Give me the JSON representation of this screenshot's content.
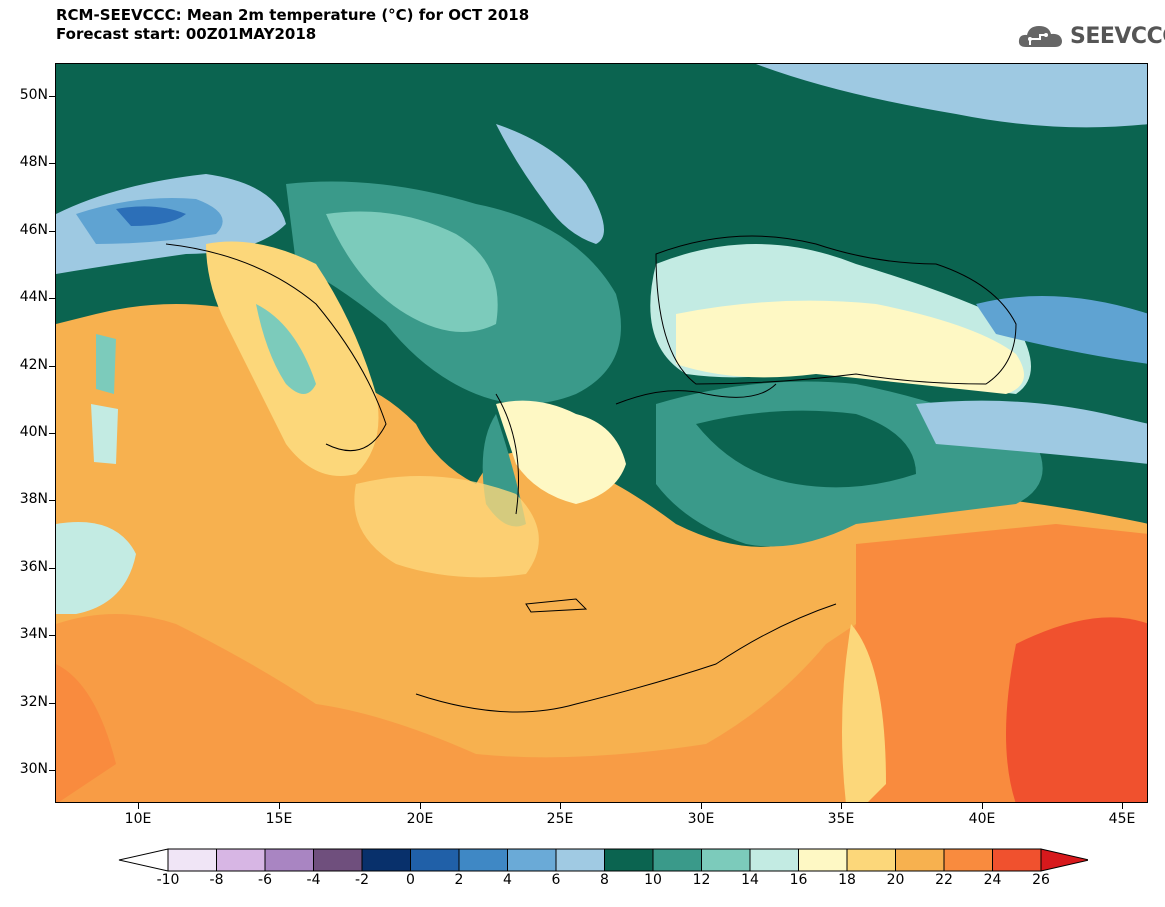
{
  "header": {
    "title_line1": "RCM-SEEVCCC: Mean 2m temperature (°C) for OCT 2018",
    "title_line2": "Forecast start: 00Z01MAY2018",
    "logo_text": "SEEVCCC"
  },
  "map": {
    "lat_labels": [
      "50N",
      "48N",
      "46N",
      "44N",
      "42N",
      "40N",
      "38N",
      "36N",
      "34N",
      "32N",
      "30N"
    ],
    "lon_labels": [
      "10E",
      "15E",
      "20E",
      "25E",
      "30E",
      "35E",
      "40E",
      "45E"
    ],
    "colors": {
      "sea_warm": "#f7b14f",
      "land_hot": "#f98b3e",
      "land_very_hot": "#f0512e",
      "pale_yellow": "#fef8c4",
      "light_yellow": "#fcd77a",
      "teal_dark": "#0b6450",
      "teal_mid": "#3a9a8a",
      "teal_light": "#7ccbbb",
      "teal_pale": "#c3ebe3",
      "blue_light": "#9ec9e2",
      "blue_mid": "#5fa3d2",
      "blue_dark": "#2c6fb8"
    }
  },
  "colorbar": {
    "labels": [
      "-10",
      "-8",
      "-6",
      "-4",
      "-2",
      "0",
      "2",
      "4",
      "6",
      "8",
      "10",
      "12",
      "14",
      "16",
      "18",
      "20",
      "22",
      "24",
      "26"
    ],
    "colors": [
      "#ffffff",
      "#f0e5f6",
      "#d7b6e4",
      "#a985c2",
      "#6f4f7d",
      "#08306b",
      "#2060a8",
      "#3f88c5",
      "#6aaad7",
      "#a0cae3",
      "#0b6450",
      "#3a9a8a",
      "#7ccbbb",
      "#c3ebe3",
      "#fef8c4",
      "#fcd77a",
      "#f7b14f",
      "#f98b3e",
      "#f0512e",
      "#d7191c"
    ]
  }
}
